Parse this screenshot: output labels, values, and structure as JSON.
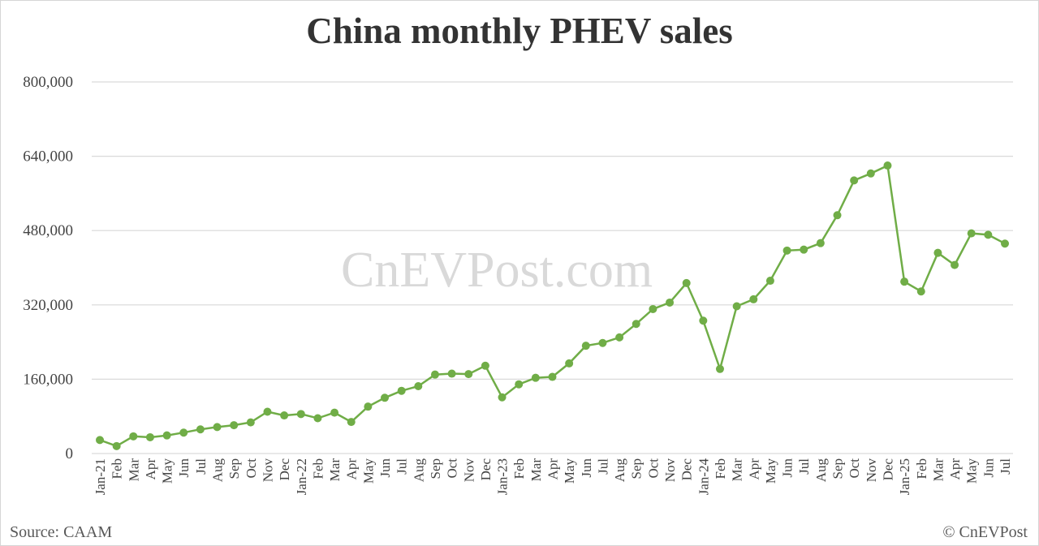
{
  "chart_data": {
    "type": "line",
    "title": "China monthly PHEV sales",
    "categories": [
      "Jan-21",
      "Feb",
      "Mar",
      "Apr",
      "May",
      "Jun",
      "Jul",
      "Aug",
      "Sep",
      "Oct",
      "Nov",
      "Dec",
      "Jan-22",
      "Feb",
      "Mar",
      "Apr",
      "May",
      "Jun",
      "Jul",
      "Aug",
      "Sep",
      "Oct",
      "Nov",
      "Dec",
      "Jan-23",
      "Feb",
      "Mar",
      "Apr",
      "May",
      "Jun",
      "Jul",
      "Aug",
      "Sep",
      "Oct",
      "Nov",
      "Dec",
      "Jan-24",
      "Feb",
      "Mar",
      "Apr",
      "May",
      "Jun",
      "Jul",
      "Aug",
      "Sep",
      "Oct",
      "Nov",
      "Dec",
      "Jan-25",
      "Feb",
      "Mar",
      "Apr",
      "May",
      "Jun",
      "Jul"
    ],
    "series": [
      {
        "values": [
          29000,
          16000,
          37000,
          35000,
          39000,
          45000,
          52000,
          57000,
          61000,
          67000,
          90000,
          82000,
          85000,
          76000,
          88000,
          68000,
          101000,
          120000,
          135000,
          145000,
          170000,
          172000,
          171000,
          189000,
          121000,
          149000,
          163000,
          165000,
          194000,
          232000,
          238000,
          250000,
          279000,
          311000,
          325000,
          367000,
          286000,
          182000,
          317000,
          332000,
          372000,
          437000,
          439000,
          453000,
          513000,
          588000,
          603000,
          620000,
          370000,
          349000,
          432000,
          406000,
          474000,
          471000,
          452000
        ]
      }
    ],
    "ylim": [
      0,
      800000
    ],
    "yticks": [
      0,
      160000,
      320000,
      480000,
      640000,
      800000
    ],
    "ytick_labels": [
      "0",
      "160,000",
      "320,000",
      "480,000",
      "640,000",
      "800,000"
    ],
    "grid": true,
    "line_color": "#70ad47",
    "gridline_color": "#d9d9d9"
  },
  "watermark": "CnEVPost.com",
  "footer": {
    "source": "Source: CAAM",
    "copyright": "© CnEVPost"
  }
}
